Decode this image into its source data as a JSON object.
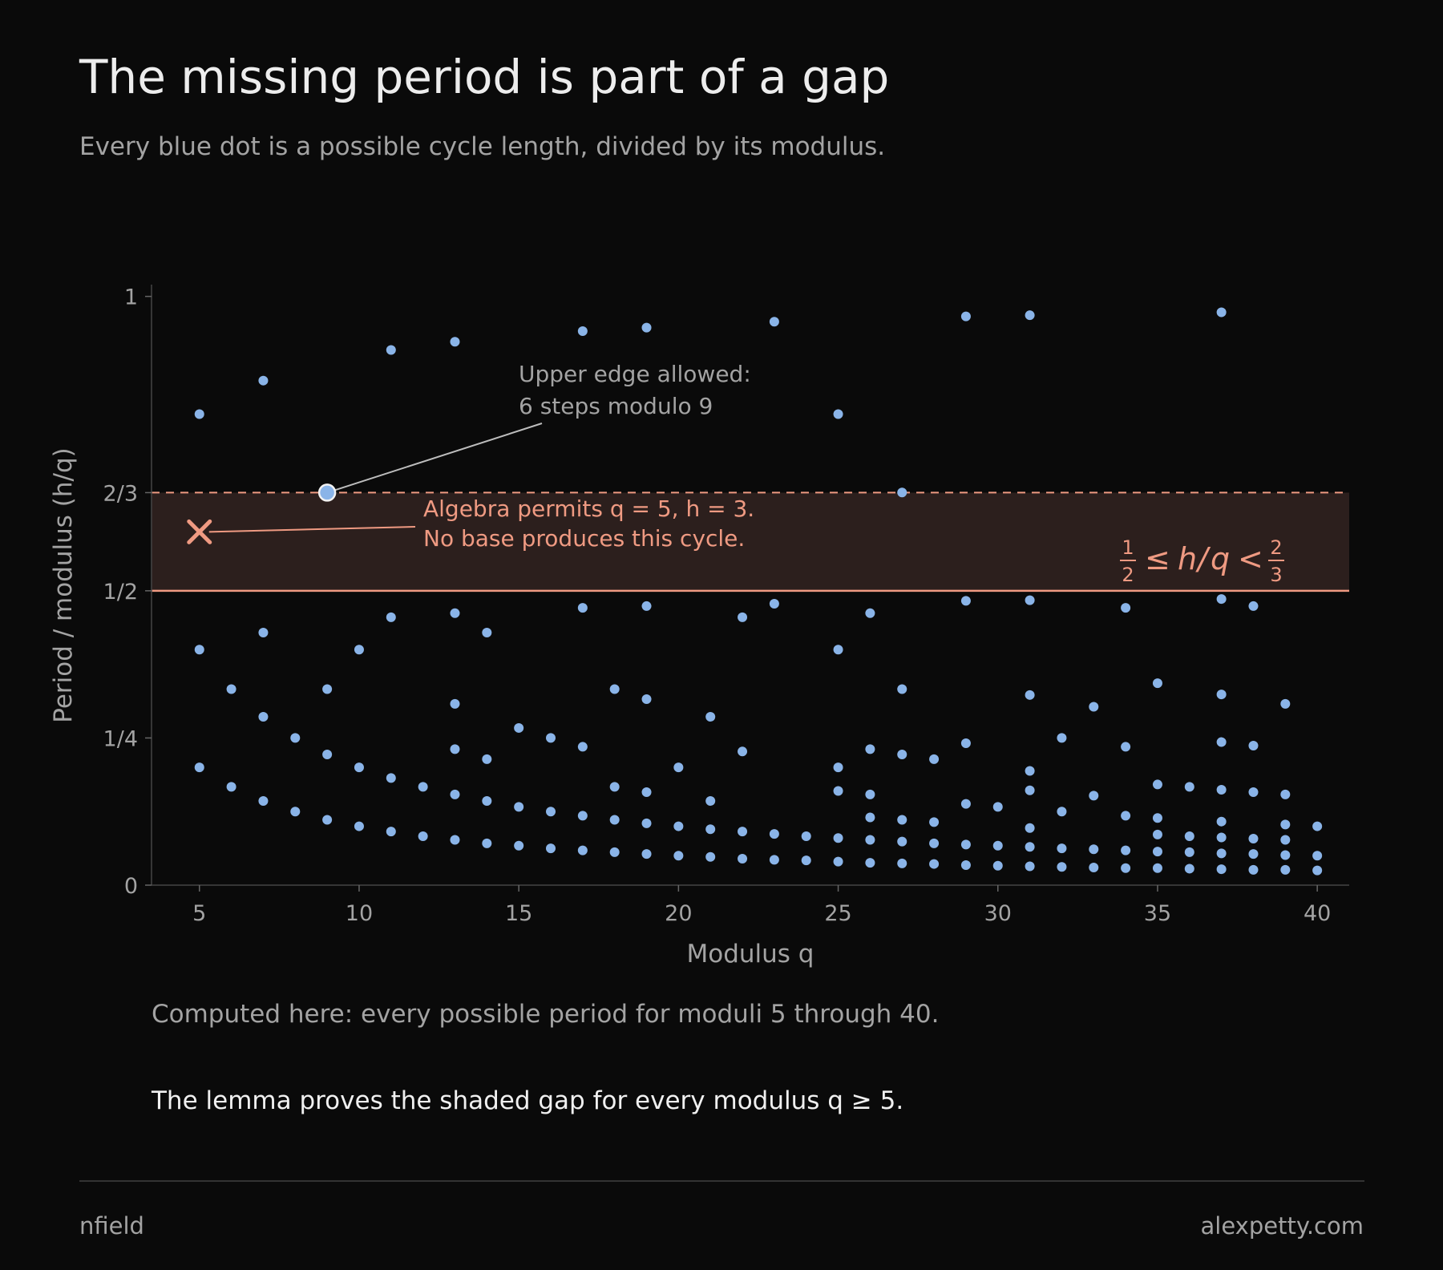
{
  "title": "The missing period is part of a gap",
  "subtitle": "Every blue dot is a possible cycle length, divided by its modulus.",
  "notes": {
    "computed": "Computed here: every possible period for moduli 5 through 40.",
    "lemma": "The lemma proves the shaded gap for every modulus q ≥ 5."
  },
  "footer": {
    "left": "nfield",
    "right": "alexpetty.com"
  },
  "colors": {
    "dot": "#8ab4e8",
    "accent": "#ef9a82",
    "band": "#2c1f1d",
    "text": "#a3a3a3",
    "background": "#0a0a0a"
  },
  "chart_data": {
    "type": "scatter",
    "xlabel": "Modulus q",
    "ylabel": "Period / modulus  (h/q)",
    "xlim": [
      3.5,
      41
    ],
    "ylim": [
      0,
      1.02
    ],
    "x_ticks": [
      5,
      10,
      15,
      20,
      25,
      30,
      35,
      40
    ],
    "y_ticks": [
      {
        "value": 0,
        "label": "0"
      },
      {
        "value": 0.25,
        "label": "1/4"
      },
      {
        "value": 0.5,
        "label": "1/2"
      },
      {
        "value": 0.6667,
        "label": "2/3"
      },
      {
        "value": 1,
        "label": "1"
      }
    ],
    "band": {
      "y0": 0.5,
      "y1": 0.6667,
      "label": {
        "h": "h",
        "q": "q",
        "one": "1",
        "two": "2",
        "three": "3"
      }
    },
    "points": [
      [
        5,
        0.8
      ],
      [
        5,
        0.4
      ],
      [
        5,
        0.2
      ],
      [
        6,
        0.333
      ],
      [
        6,
        0.167
      ],
      [
        7,
        0.857
      ],
      [
        7,
        0.429
      ],
      [
        7,
        0.286
      ],
      [
        7,
        0.143
      ],
      [
        8,
        0.25
      ],
      [
        8,
        0.125
      ],
      [
        9,
        0.667
      ],
      [
        9,
        0.333
      ],
      [
        9,
        0.222
      ],
      [
        9,
        0.111
      ],
      [
        10,
        0.4
      ],
      [
        10,
        0.2
      ],
      [
        10,
        0.1
      ],
      [
        11,
        0.909
      ],
      [
        11,
        0.455
      ],
      [
        11,
        0.182
      ],
      [
        11,
        0.091
      ],
      [
        12,
        0.167
      ],
      [
        12,
        0.083
      ],
      [
        13,
        0.923
      ],
      [
        13,
        0.462
      ],
      [
        13,
        0.308
      ],
      [
        13,
        0.231
      ],
      [
        13,
        0.154
      ],
      [
        13,
        0.077
      ],
      [
        14,
        0.429
      ],
      [
        14,
        0.214
      ],
      [
        14,
        0.143
      ],
      [
        14,
        0.071
      ],
      [
        15,
        0.267
      ],
      [
        15,
        0.133
      ],
      [
        15,
        0.067
      ],
      [
        16,
        0.25
      ],
      [
        16,
        0.125
      ],
      [
        16,
        0.0625
      ],
      [
        17,
        0.941
      ],
      [
        17,
        0.471
      ],
      [
        17,
        0.235
      ],
      [
        17,
        0.118
      ],
      [
        17,
        0.059
      ],
      [
        18,
        0.333
      ],
      [
        18,
        0.167
      ],
      [
        18,
        0.111
      ],
      [
        18,
        0.056
      ],
      [
        19,
        0.947
      ],
      [
        19,
        0.474
      ],
      [
        19,
        0.316
      ],
      [
        19,
        0.158
      ],
      [
        19,
        0.105
      ],
      [
        19,
        0.053
      ],
      [
        20,
        0.2
      ],
      [
        20,
        0.1
      ],
      [
        20,
        0.05
      ],
      [
        21,
        0.286
      ],
      [
        21,
        0.143
      ],
      [
        21,
        0.095
      ],
      [
        21,
        0.048
      ],
      [
        22,
        0.455
      ],
      [
        22,
        0.227
      ],
      [
        22,
        0.091
      ],
      [
        22,
        0.045
      ],
      [
        23,
        0.957
      ],
      [
        23,
        0.478
      ],
      [
        23,
        0.087
      ],
      [
        23,
        0.043
      ],
      [
        24,
        0.083
      ],
      [
        24,
        0.042
      ],
      [
        25,
        0.8
      ],
      [
        25,
        0.4
      ],
      [
        25,
        0.2
      ],
      [
        25,
        0.16
      ],
      [
        25,
        0.08
      ],
      [
        25,
        0.04
      ],
      [
        26,
        0.462
      ],
      [
        26,
        0.231
      ],
      [
        26,
        0.154
      ],
      [
        26,
        0.115
      ],
      [
        26,
        0.077
      ],
      [
        26,
        0.038
      ],
      [
        27,
        0.667
      ],
      [
        27,
        0.333
      ],
      [
        27,
        0.222
      ],
      [
        27,
        0.111
      ],
      [
        27,
        0.074
      ],
      [
        27,
        0.037
      ],
      [
        28,
        0.214
      ],
      [
        28,
        0.107
      ],
      [
        28,
        0.071
      ],
      [
        28,
        0.036
      ],
      [
        29,
        0.966
      ],
      [
        29,
        0.483
      ],
      [
        29,
        0.241
      ],
      [
        29,
        0.138
      ],
      [
        29,
        0.069
      ],
      [
        29,
        0.034
      ],
      [
        30,
        0.133
      ],
      [
        30,
        0.067
      ],
      [
        30,
        0.033
      ],
      [
        31,
        0.968
      ],
      [
        31,
        0.484
      ],
      [
        31,
        0.323
      ],
      [
        31,
        0.194
      ],
      [
        31,
        0.161
      ],
      [
        31,
        0.097
      ],
      [
        31,
        0.065
      ],
      [
        31,
        0.032
      ],
      [
        32,
        0.25
      ],
      [
        32,
        0.125
      ],
      [
        32,
        0.0625
      ],
      [
        32,
        0.031
      ],
      [
        33,
        0.303
      ],
      [
        33,
        0.152
      ],
      [
        33,
        0.061
      ],
      [
        33,
        0.03
      ],
      [
        34,
        0.471
      ],
      [
        34,
        0.235
      ],
      [
        34,
        0.118
      ],
      [
        34,
        0.059
      ],
      [
        34,
        0.029
      ],
      [
        35,
        0.343
      ],
      [
        35,
        0.171
      ],
      [
        35,
        0.114
      ],
      [
        35,
        0.086
      ],
      [
        35,
        0.057
      ],
      [
        35,
        0.029
      ],
      [
        36,
        0.167
      ],
      [
        36,
        0.083
      ],
      [
        36,
        0.056
      ],
      [
        36,
        0.028
      ],
      [
        37,
        0.973
      ],
      [
        37,
        0.486
      ],
      [
        37,
        0.324
      ],
      [
        37,
        0.243
      ],
      [
        37,
        0.162
      ],
      [
        37,
        0.108
      ],
      [
        37,
        0.081
      ],
      [
        37,
        0.054
      ],
      [
        37,
        0.027
      ],
      [
        38,
        0.474
      ],
      [
        38,
        0.237
      ],
      [
        38,
        0.158
      ],
      [
        38,
        0.079
      ],
      [
        38,
        0.053
      ],
      [
        38,
        0.026
      ],
      [
        39,
        0.308
      ],
      [
        39,
        0.154
      ],
      [
        39,
        0.103
      ],
      [
        39,
        0.077
      ],
      [
        39,
        0.051
      ],
      [
        39,
        0.026
      ],
      [
        40,
        0.1
      ],
      [
        40,
        0.05
      ],
      [
        40,
        0.025
      ]
    ],
    "highlight": {
      "q": 9,
      "value": 0.6667,
      "label_line1": "Upper edge allowed:",
      "label_line2": "6 steps modulo 9"
    },
    "missing": {
      "q": 5,
      "value": 0.6,
      "label_line1": "Algebra permits q = 5, h = 3.",
      "label_line2": "No base produces this cycle."
    }
  }
}
